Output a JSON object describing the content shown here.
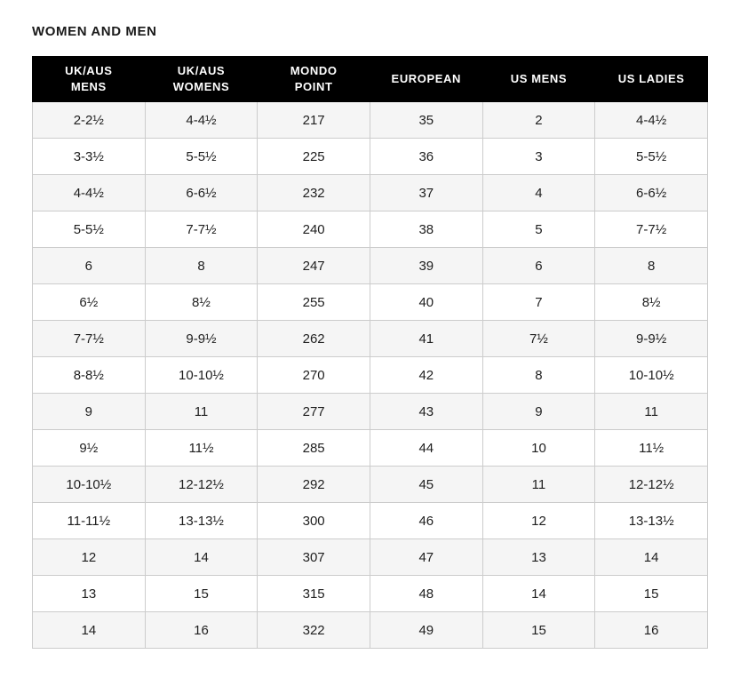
{
  "page": {
    "title": "WOMEN AND MEN"
  },
  "chart_data": {
    "type": "table",
    "title": "WOMEN AND MEN",
    "columns": [
      "UK/AUS MENS",
      "UK/AUS WOMENS",
      "MONDO POINT",
      "EUROPEAN",
      "US MENS",
      "US LADIES"
    ],
    "header_lines": [
      [
        "UK/AUS",
        "MENS"
      ],
      [
        "UK/AUS",
        "WOMENS"
      ],
      [
        "MONDO",
        "POINT"
      ],
      [
        "EUROPEAN"
      ],
      [
        "US MENS"
      ],
      [
        "US LADIES"
      ]
    ],
    "rows": [
      [
        "2-2½",
        "4-4½",
        "217",
        "35",
        "2",
        "4-4½"
      ],
      [
        "3-3½",
        "5-5½",
        "225",
        "36",
        "3",
        "5-5½"
      ],
      [
        "4-4½",
        "6-6½",
        "232",
        "37",
        "4",
        "6-6½"
      ],
      [
        "5-5½",
        "7-7½",
        "240",
        "38",
        "5",
        "7-7½"
      ],
      [
        "6",
        "8",
        "247",
        "39",
        "6",
        "8"
      ],
      [
        "6½",
        "8½",
        "255",
        "40",
        "7",
        "8½"
      ],
      [
        "7-7½",
        "9-9½",
        "262",
        "41",
        "7½",
        "9-9½"
      ],
      [
        "8-8½",
        "10-10½",
        "270",
        "42",
        "8",
        "10-10½"
      ],
      [
        "9",
        "11",
        "277",
        "43",
        "9",
        "11"
      ],
      [
        "9½",
        "11½",
        "285",
        "44",
        "10",
        "11½"
      ],
      [
        "10-10½",
        "12-12½",
        "292",
        "45",
        "11",
        "12-12½"
      ],
      [
        "11-11½",
        "13-13½",
        "300",
        "46",
        "12",
        "13-13½"
      ],
      [
        "12",
        "14",
        "307",
        "47",
        "13",
        "14"
      ],
      [
        "13",
        "15",
        "315",
        "48",
        "14",
        "15"
      ],
      [
        "14",
        "16",
        "322",
        "49",
        "15",
        "16"
      ]
    ]
  },
  "colors": {
    "header_bg": "#000000",
    "header_text": "#ffffff",
    "row_stripe_bg": "#f5f5f5",
    "row_bg": "#ffffff",
    "border": "#cccccc",
    "body_text": "#1e1e1e",
    "title_text": "#1a1a1a"
  }
}
